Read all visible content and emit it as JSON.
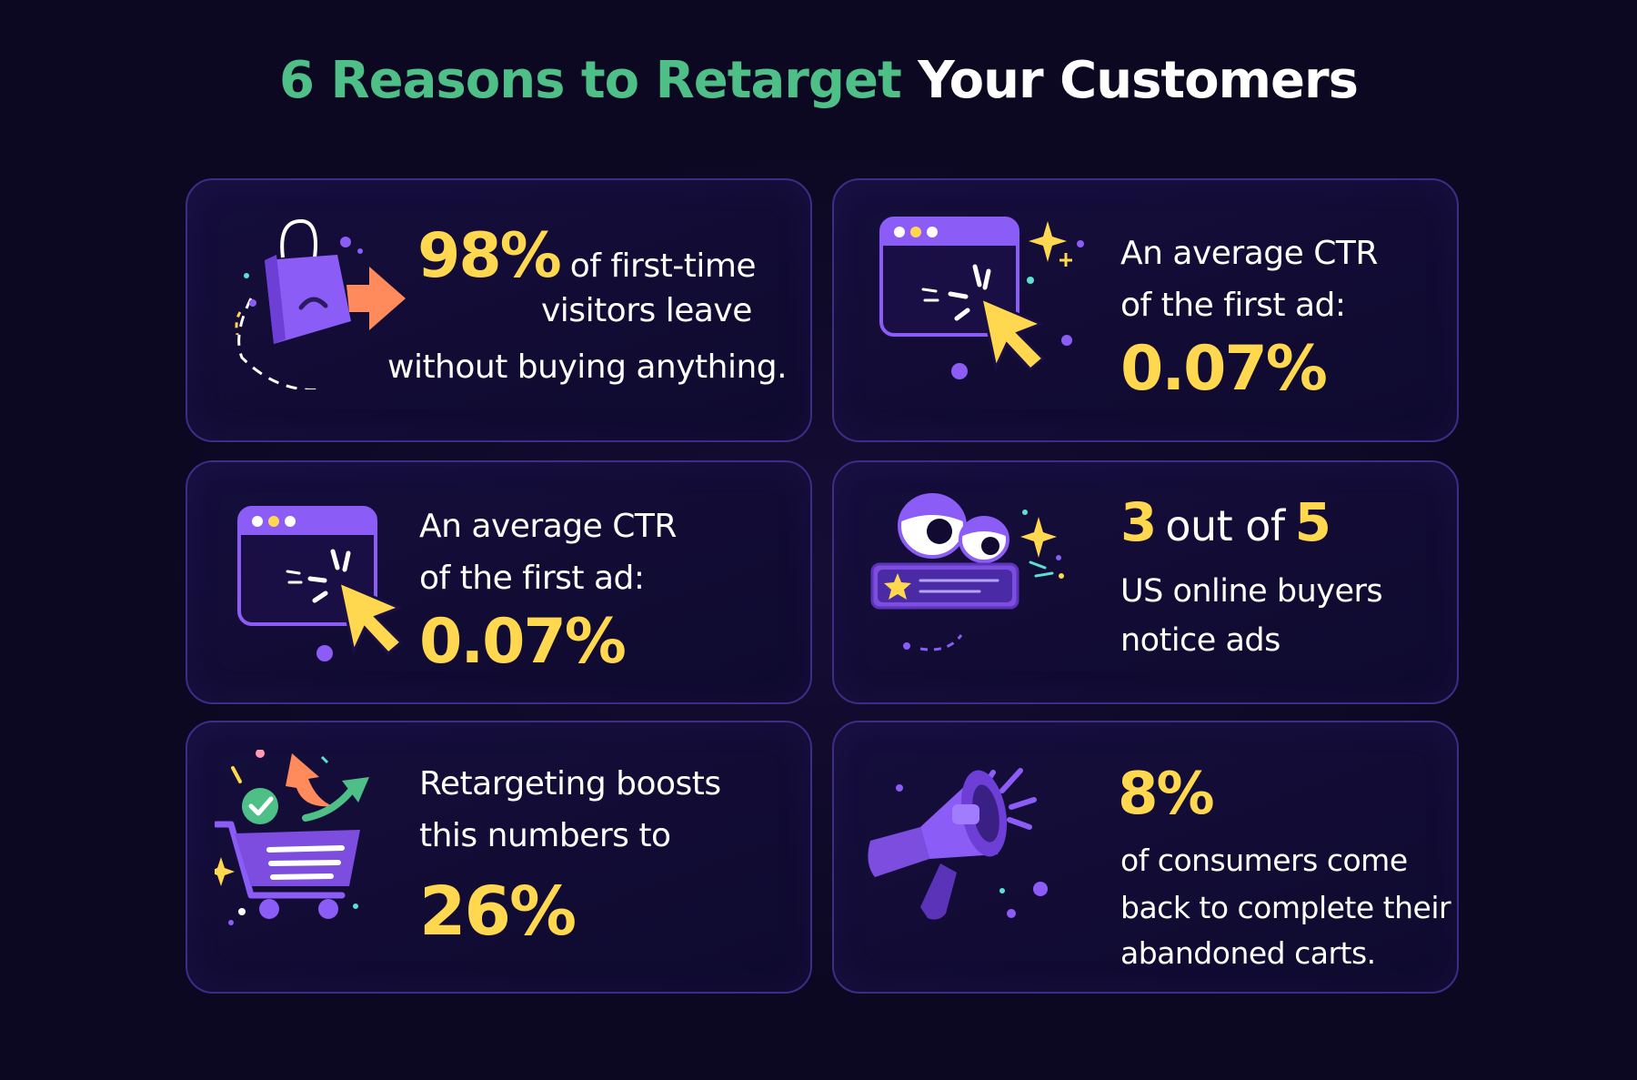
{
  "title": {
    "part1": "6 Reasons to Retarget",
    "part2": "Your Customers"
  },
  "cards": [
    {
      "stat": "98%",
      "line1": "of first-time",
      "line2": "visitors leave",
      "line3": "without buying anything.",
      "icon": "shopping-bag-exit-icon"
    },
    {
      "line1": "An average CTR",
      "line2": "of the first ad:",
      "stat": "0.07%",
      "icon": "browser-click-icon"
    },
    {
      "line1": "An average CTR",
      "line2": "of the first ad:",
      "stat": "0.07%",
      "icon": "browser-click-icon"
    },
    {
      "stat_a": "3",
      "mid": "out of",
      "stat_b": "5",
      "line2": "US online buyers",
      "line3": "notice ads",
      "icon": "eyes-ad-icon"
    },
    {
      "line1": "Retargeting boosts",
      "line2": "this numbers to",
      "stat": "26%",
      "icon": "shopping-cart-icon"
    },
    {
      "stat": "8%",
      "line1": "of consumers come",
      "line2": "back to complete their",
      "line3": "abandoned carts.",
      "icon": "megaphone-icon"
    }
  ],
  "colors": {
    "background": "#0c0822",
    "title_accent": "#4fbf88",
    "stat": "#ffd84f",
    "card_border": "#3f2c86",
    "icon_purple": "#8b5cf6",
    "icon_orange": "#ff8a5b"
  }
}
